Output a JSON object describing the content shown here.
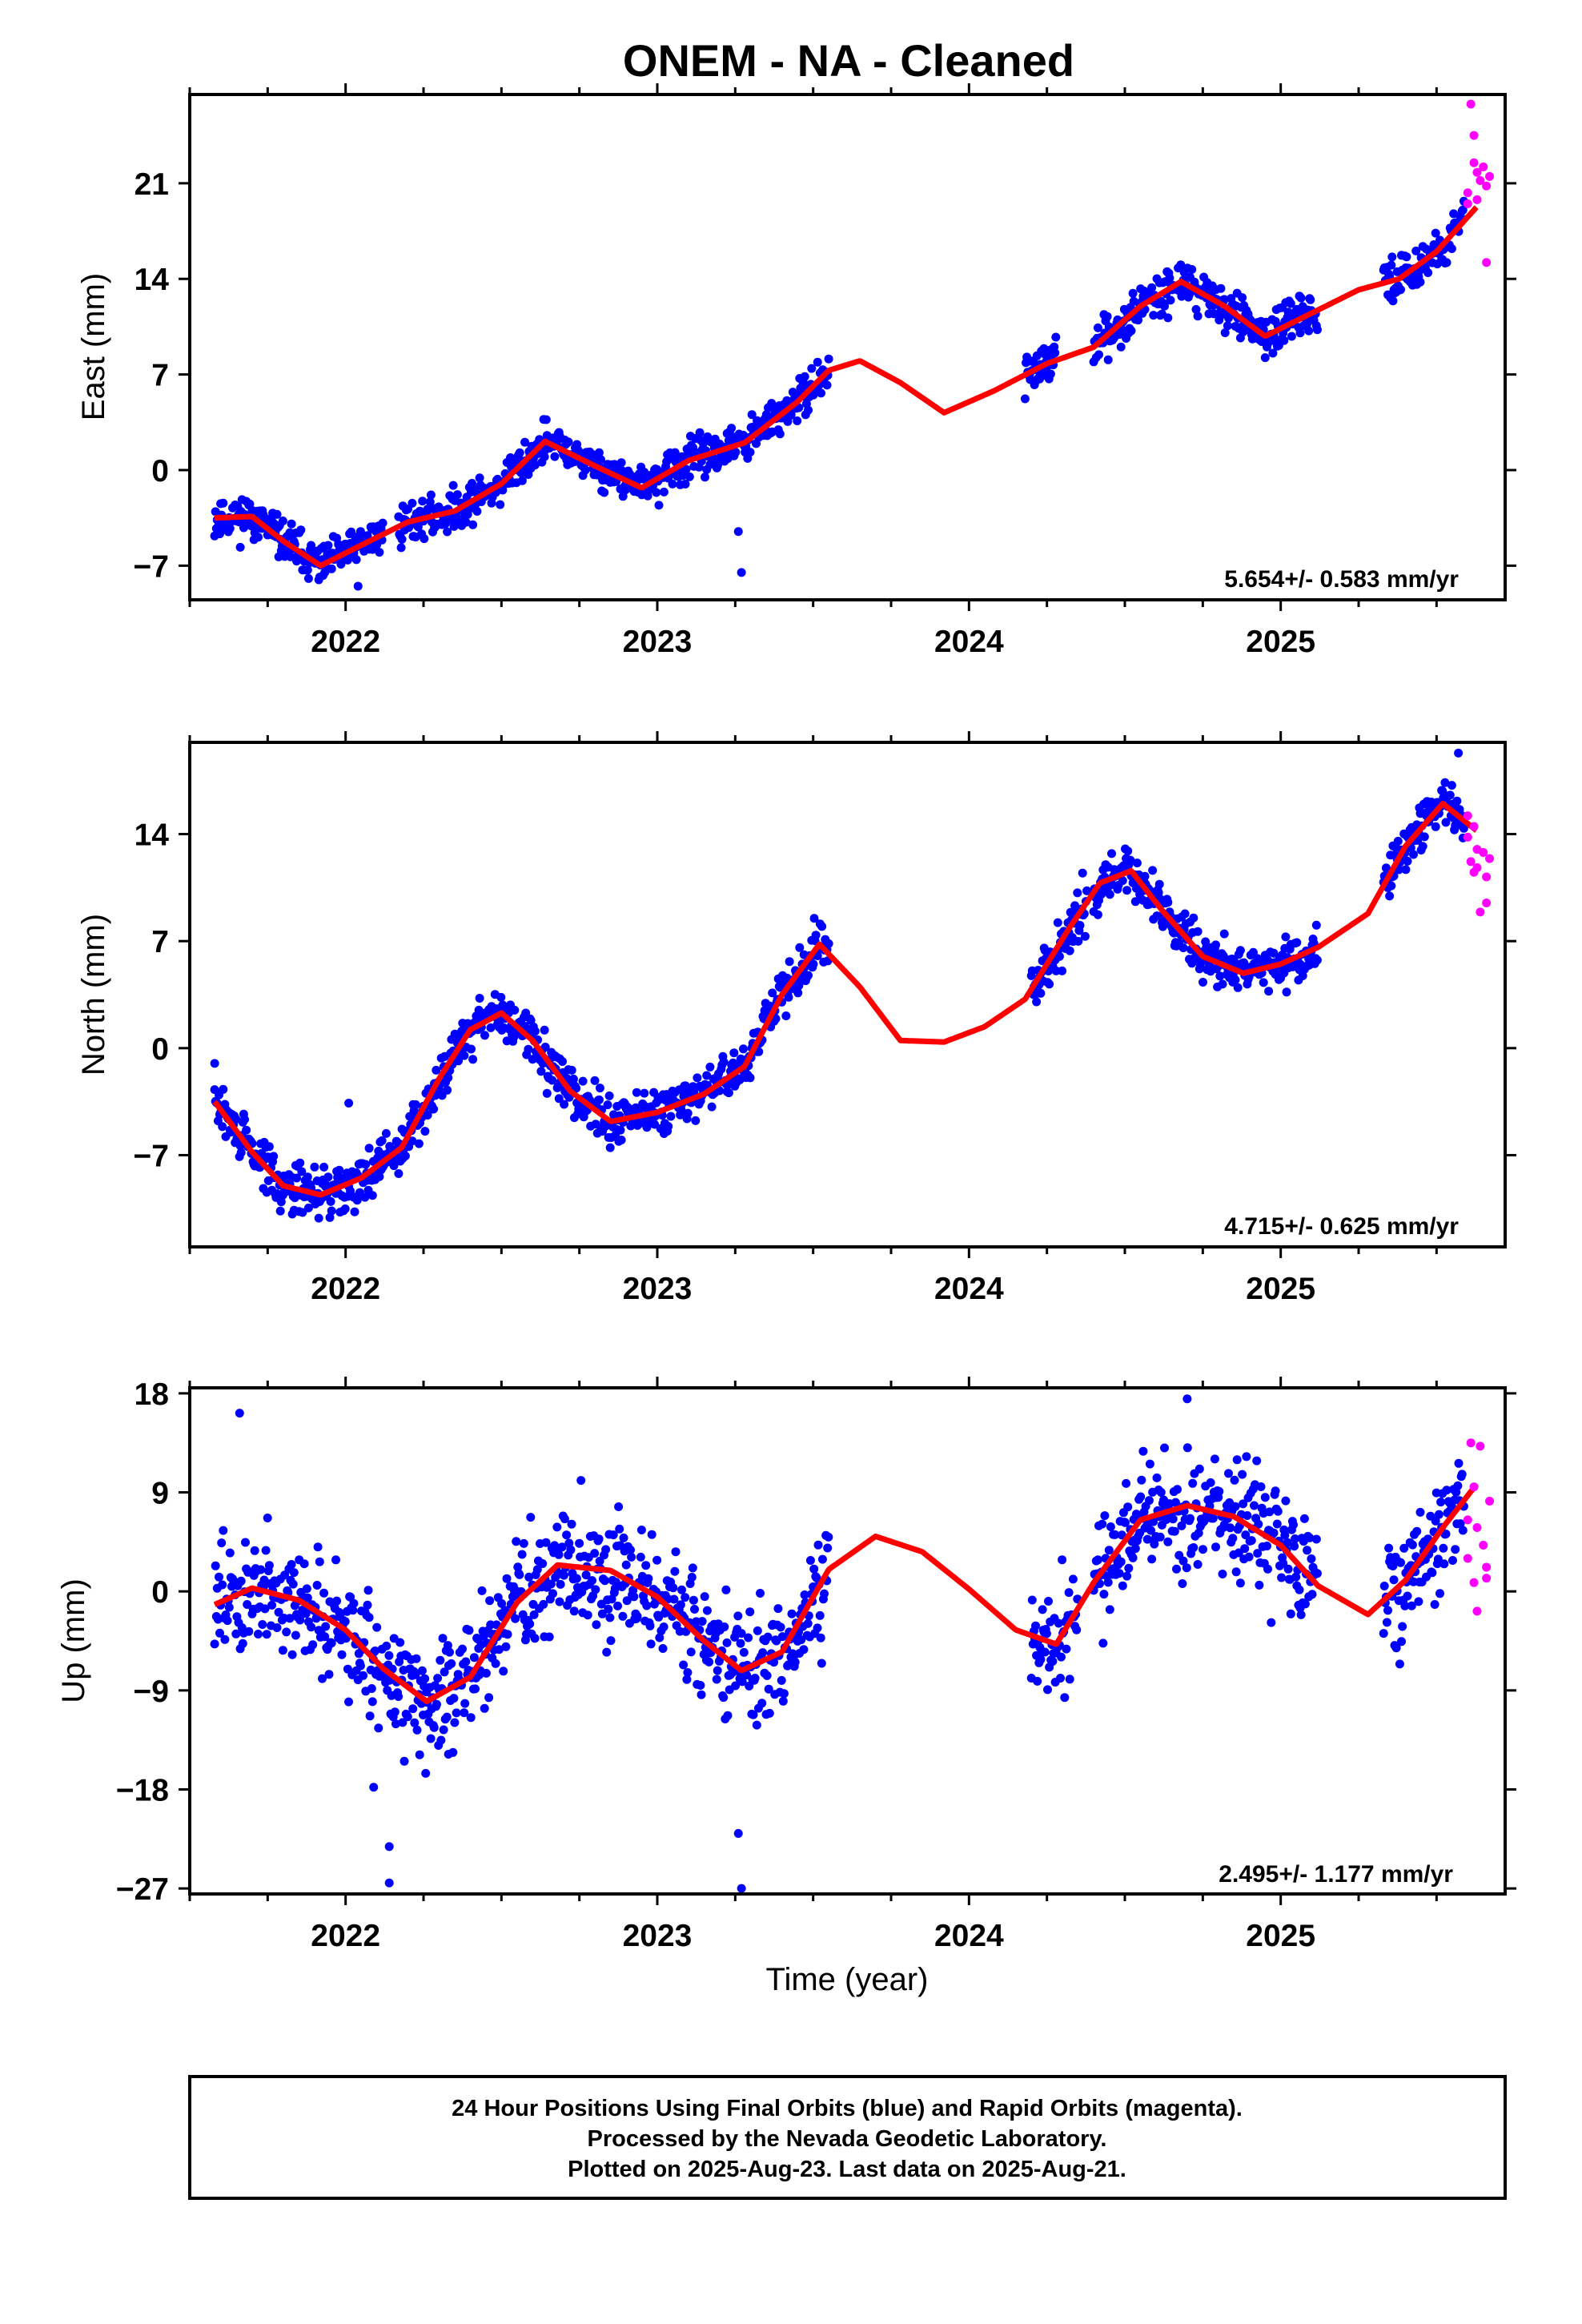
{
  "title": "ONEM  - NA - Cleaned",
  "colors": {
    "final": "#0000ff",
    "rapid": "#ff00ff",
    "model": "#ff0000",
    "axis": "#000000"
  },
  "chart_data": [
    {
      "type": "scatter",
      "ylabel": "East (mm)",
      "xlabel": "",
      "xlim": [
        2021.5,
        2025.72
      ],
      "ylim": [
        -9.5,
        27.5
      ],
      "yticks": [
        -7,
        0,
        7,
        14,
        21
      ],
      "xticks": [
        2022,
        2023,
        2024,
        2025
      ],
      "rate_text": "5.654+/- 0.583 mm/yr",
      "segments": [
        [
          2021.58,
          2022.12
        ],
        [
          2022.17,
          2023.55
        ],
        [
          2024.18,
          2024.28
        ],
        [
          2024.4,
          2025.12
        ],
        [
          2025.33,
          2025.59
        ]
      ],
      "trend": {
        "offset": -11.2,
        "rate": 5.654
      },
      "model_x": [
        2021.58,
        2021.7,
        2021.8,
        2021.92,
        2022.05,
        2022.2,
        2022.35,
        2022.5,
        2022.64,
        2022.8,
        2022.95,
        2023.1,
        2023.28,
        2023.45,
        2023.55,
        2023.65,
        2023.78,
        2023.92,
        2024.08,
        2024.25,
        2024.4,
        2024.55,
        2024.68,
        2024.82,
        2024.95,
        2025.1,
        2025.25,
        2025.38,
        2025.5,
        2025.63
      ],
      "model_y": [
        -3.5,
        -3.4,
        -5.2,
        -7.0,
        -5.5,
        -3.8,
        -3.0,
        -1.0,
        2.1,
        0.3,
        -1.3,
        0.7,
        2.0,
        5.0,
        7.3,
        8.0,
        6.4,
        4.2,
        5.8,
        7.8,
        9.0,
        12.0,
        13.8,
        12.0,
        9.8,
        11.5,
        13.2,
        14.0,
        16.0,
        19.3
      ],
      "rapid": {
        "x": [
          2025.6,
          2025.6,
          2025.61,
          2025.62,
          2025.62,
          2025.63,
          2025.63,
          2025.64,
          2025.65,
          2025.66,
          2025.66,
          2025.67
        ],
        "y": [
          19.5,
          20.3,
          26.8,
          24.5,
          22.5,
          21.8,
          19.8,
          21.2,
          22.2,
          15.2,
          20.8,
          21.5
        ]
      },
      "outliers": {
        "x": [
          2023.26,
          2023.27,
          2022.04
        ],
        "y": [
          -4.5,
          -7.5,
          -8.5
        ]
      }
    },
    {
      "type": "scatter",
      "ylabel": "North (mm)",
      "xlabel": "",
      "xlim": [
        2021.5,
        2025.72
      ],
      "ylim": [
        -13.0,
        20.0
      ],
      "yticks": [
        -7,
        0,
        7,
        14
      ],
      "xticks": [
        2022,
        2023,
        2024,
        2025
      ],
      "rate_text": "4.715+/- 0.625 mm/yr",
      "segments": [
        [
          2021.58,
          2022.17
        ],
        [
          2022.17,
          2023.55
        ],
        [
          2024.2,
          2024.38
        ],
        [
          2024.4,
          2025.12
        ],
        [
          2025.33,
          2025.59
        ]
      ],
      "trend": {
        "offset": -9.5,
        "rate": 4.715
      },
      "model_x": [
        2021.58,
        2021.7,
        2021.8,
        2021.92,
        2022.05,
        2022.18,
        2022.3,
        2022.4,
        2022.5,
        2022.6,
        2022.72,
        2022.85,
        2023.0,
        2023.15,
        2023.28,
        2023.4,
        2023.52,
        2023.65,
        2023.78,
        2023.92,
        2024.05,
        2024.18,
        2024.32,
        2024.42,
        2024.52,
        2024.62,
        2024.75,
        2024.88,
        2025.0,
        2025.12,
        2025.28,
        2025.4,
        2025.52,
        2025.63
      ],
      "model_y": [
        -3.5,
        -6.8,
        -9.0,
        -9.6,
        -8.5,
        -6.5,
        -2.0,
        1.2,
        2.3,
        0.5,
        -2.8,
        -4.8,
        -4.2,
        -3.0,
        -1.2,
        3.5,
        6.8,
        4.0,
        0.5,
        0.4,
        1.4,
        3.2,
        7.8,
        10.8,
        11.6,
        9.0,
        6.0,
        4.9,
        5.5,
        6.6,
        8.8,
        13.2,
        16.0,
        14.2
      ],
      "rapid": {
        "x": [
          2025.6,
          2025.6,
          2025.61,
          2025.62,
          2025.62,
          2025.63,
          2025.63,
          2025.64,
          2025.65,
          2025.66,
          2025.66,
          2025.67
        ],
        "y": [
          15.2,
          13.8,
          12.2,
          11.5,
          14.5,
          13.0,
          11.8,
          8.9,
          12.8,
          9.5,
          11.2,
          12.4
        ]
      },
      "outliers": {
        "x": [
          2025.57,
          2021.58,
          2022.01
        ],
        "y": [
          19.3,
          -1.0,
          -3.6
        ]
      }
    },
    {
      "type": "scatter",
      "ylabel": "Up (mm)",
      "xlabel": "Time (year)",
      "xlim": [
        2021.5,
        2025.72
      ],
      "ylim": [
        -27.5,
        18.5
      ],
      "yticks": [
        -27,
        -18,
        -9,
        0,
        9,
        18
      ],
      "xticks": [
        2022,
        2023,
        2024,
        2025
      ],
      "rate_text": "2.495+/- 1.177 mm/yr",
      "segments": [
        [
          2021.58,
          2022.12
        ],
        [
          2022.12,
          2023.55
        ],
        [
          2024.2,
          2024.35
        ],
        [
          2024.4,
          2025.12
        ],
        [
          2025.33,
          2025.59
        ]
      ],
      "trend": {
        "offset": -5.0,
        "rate": 2.495
      },
      "model_x": [
        2021.58,
        2021.7,
        2021.85,
        2022.0,
        2022.12,
        2022.26,
        2022.4,
        2022.55,
        2022.68,
        2022.85,
        2023.0,
        2023.15,
        2023.27,
        2023.4,
        2023.55,
        2023.7,
        2023.85,
        2024.0,
        2024.15,
        2024.28,
        2024.4,
        2024.55,
        2024.7,
        2024.85,
        2025.0,
        2025.12,
        2025.28,
        2025.4,
        2025.52,
        2025.63
      ],
      "model_y": [
        -1.2,
        0.3,
        -0.8,
        -3.5,
        -7.0,
        -10.0,
        -7.8,
        -1.0,
        2.4,
        1.9,
        -0.5,
        -4.5,
        -7.2,
        -5.5,
        2.0,
        5.0,
        3.6,
        0.2,
        -3.5,
        -4.8,
        0.8,
        6.5,
        7.8,
        6.8,
        4.2,
        0.5,
        -2.1,
        1.0,
        5.8,
        9.8
      ],
      "rapid": {
        "x": [
          2025.6,
          2025.6,
          2025.61,
          2025.62,
          2025.62,
          2025.63,
          2025.63,
          2025.64,
          2025.65,
          2025.66,
          2025.66,
          2025.67
        ],
        "y": [
          6.5,
          3.0,
          13.5,
          9.5,
          0.8,
          5.8,
          -1.8,
          13.2,
          4.2,
          1.2,
          2.2,
          8.2
        ]
      },
      "outliers": {
        "x": [
          2022.14,
          2022.14,
          2023.26,
          2023.27,
          2022.09,
          2022.33,
          2021.66,
          2024.7
        ],
        "y": [
          -26.5,
          -23.2,
          -22.0,
          -27.0,
          -17.8,
          -14.8,
          16.2,
          17.5
        ]
      }
    }
  ],
  "footer": {
    "line1": "24 Hour Positions Using Final Orbits (blue) and Rapid Orbits (magenta).",
    "line2": "Processed by the Nevada Geodetic Laboratory.",
    "line3": "Plotted on 2025-Aug-23. Last data on 2025-Aug-21."
  }
}
